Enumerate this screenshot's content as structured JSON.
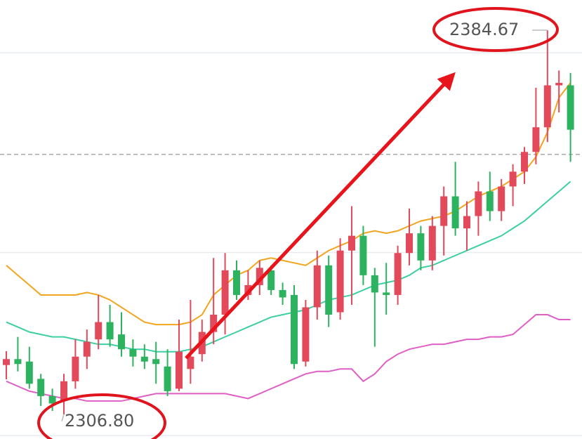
{
  "chart_data": {
    "type": "candlestick",
    "ylim": [
      2301.8,
      2390.8
    ],
    "gridlines": [
      2302.5,
      2339.6,
      2380.1
    ],
    "reference_line": 2359.5,
    "up_color": "#e2495b",
    "down_color": "#2db35f",
    "ohlc": [
      [
        2316.8,
        2319.6,
        2313.9,
        2318.0
      ],
      [
        2318.0,
        2322.5,
        2315.5,
        2317.0
      ],
      [
        2317.5,
        2320.5,
        2312.0,
        2313.0
      ],
      [
        2314.0,
        2315.0,
        2308.5,
        2310.5
      ],
      [
        2310.5,
        2312.0,
        2307.5,
        2309.0
      ],
      [
        2309.5,
        2315.0,
        2306.8,
        2313.5
      ],
      [
        2313.5,
        2322.0,
        2312.0,
        2318.5
      ],
      [
        2318.5,
        2324.0,
        2316.0,
        2321.5
      ],
      [
        2322.0,
        2331.0,
        2320.0,
        2325.5
      ],
      [
        2325.5,
        2329.0,
        2320.5,
        2322.0
      ],
      [
        2323.0,
        2327.5,
        2318.5,
        2320.0
      ],
      [
        2320.0,
        2322.0,
        2316.5,
        2318.5
      ],
      [
        2318.5,
        2321.0,
        2316.0,
        2317.5
      ],
      [
        2318.0,
        2321.5,
        2313.0,
        2317.0
      ],
      [
        2316.5,
        2320.0,
        2310.5,
        2311.5
      ],
      [
        2312.0,
        2326.0,
        2311.5,
        2319.5
      ],
      [
        2316.0,
        2330.0,
        2313.0,
        2318.5
      ],
      [
        2319.0,
        2326.0,
        2317.5,
        2323.5
      ],
      [
        2323.5,
        2338.5,
        2321.0,
        2327.0
      ],
      [
        2327.0,
        2339.5,
        2323.0,
        2336.0
      ],
      [
        2336.0,
        2338.0,
        2330.0,
        2331.0
      ],
      [
        2331.0,
        2336.0,
        2330.0,
        2333.0
      ],
      [
        2333.0,
        2338.0,
        2331.0,
        2336.5
      ],
      [
        2336.0,
        2337.0,
        2331.0,
        2332.0
      ],
      [
        2332.0,
        2333.5,
        2329.0,
        2330.5
      ],
      [
        2331.0,
        2333.0,
        2316.0,
        2317.0
      ],
      [
        2317.5,
        2330.0,
        2316.5,
        2328.5
      ],
      [
        2328.5,
        2340.0,
        2326.0,
        2337.0
      ],
      [
        2337.0,
        2339.0,
        2324.5,
        2327.0
      ],
      [
        2327.5,
        2342.5,
        2326.0,
        2340.0
      ],
      [
        2340.0,
        2349.0,
        2329.0,
        2343.0
      ],
      [
        2343.0,
        2345.0,
        2333.0,
        2335.0
      ],
      [
        2335.0,
        2336.5,
        2320.5,
        2331.5
      ],
      [
        2331.5,
        2337.5,
        2327.0,
        2331.0
      ],
      [
        2331.0,
        2341.0,
        2329.0,
        2339.5
      ],
      [
        2339.5,
        2348.5,
        2337.0,
        2343.5
      ],
      [
        2343.5,
        2345.0,
        2336.0,
        2338.0
      ],
      [
        2338.0,
        2347.0,
        2336.0,
        2345.0
      ],
      [
        2345.0,
        2353.0,
        2339.0,
        2351.0
      ],
      [
        2351.0,
        2358.0,
        2343.0,
        2344.5
      ],
      [
        2344.5,
        2350.0,
        2340.0,
        2347.0
      ],
      [
        2347.0,
        2354.0,
        2343.0,
        2352.0
      ],
      [
        2352.0,
        2356.0,
        2346.0,
        2348.0
      ],
      [
        2348.0,
        2354.5,
        2346.0,
        2353.0
      ],
      [
        2353.0,
        2357.5,
        2349.0,
        2356.0
      ],
      [
        2356.0,
        2361.0,
        2353.5,
        2360.0
      ],
      [
        2360.0,
        2373.0,
        2357.5,
        2365.0
      ],
      [
        2365.0,
        2384.67,
        2362.0,
        2373.5
      ],
      [
        2373.5,
        2376.5,
        2368.0,
        2374.0
      ],
      [
        2373.5,
        2376.0,
        2358.0,
        2364.5
      ]
    ],
    "series": [
      {
        "color": "#f2a51e",
        "values": [
          2337,
          2335,
          2333,
          2331,
          2331,
          2331,
          2331,
          2331.5,
          2331,
          2330,
          2328.5,
          2327,
          2325.5,
          2325,
          2325,
          2325,
          2325.5,
          2327,
          2331,
          2333,
          2335,
          2336,
          2338,
          2338.5,
          2338,
          2337.5,
          2337,
          2338.5,
          2340,
          2341,
          2342,
          2343.5,
          2344,
          2343.5,
          2344,
          2345,
          2346,
          2346.5,
          2347,
          2348,
          2349.5,
          2351,
          2352,
          2353,
          2354.5,
          2356,
          2359,
          2364,
          2371,
          2374
        ]
      },
      {
        "color": "#3ccfa2",
        "values": [
          2325.5,
          2324.5,
          2323.5,
          2323,
          2322.5,
          2322.5,
          2322,
          2321.5,
          2321,
          2321,
          2320.5,
          2320,
          2320,
          2319.5,
          2319.5,
          2319.5,
          2320,
          2320.5,
          2321.5,
          2322.5,
          2323.5,
          2324.5,
          2325.5,
          2326.5,
          2327,
          2327.5,
          2328,
          2329,
          2330,
          2330.5,
          2331,
          2332,
          2333,
          2333.5,
          2334,
          2335,
          2336.5,
          2337,
          2338,
          2339,
          2340,
          2341,
          2342,
          2343,
          2344.5,
          2346,
          2348,
          2350,
          2352,
          2354
        ]
      },
      {
        "color": "#df5fc6",
        "values": [
          2313.5,
          2312.5,
          2311.5,
          2311,
          2310.5,
          2310,
          2310,
          2309.5,
          2309.5,
          2309.5,
          2309.5,
          2310,
          2310.5,
          2311,
          2311,
          2311,
          2311,
          2311,
          2311,
          2311,
          2310.5,
          2310,
          2311,
          2312,
          2313,
          2314,
          2315,
          2315.5,
          2315.5,
          2316,
          2316,
          2313.5,
          2315,
          2317.5,
          2319,
          2320,
          2320.5,
          2321,
          2321,
          2321.5,
          2322,
          2322,
          2322.5,
          2322.5,
          2323,
          2325,
          2327,
          2327,
          2326,
          2326
        ]
      }
    ],
    "annotations": [
      {
        "value": 2384.67,
        "label": "2384.67"
      },
      {
        "value": 2306.8,
        "label": "2306.80"
      }
    ]
  }
}
